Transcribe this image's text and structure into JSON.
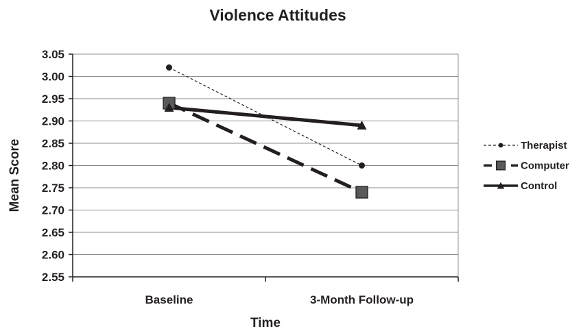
{
  "chart_data": {
    "type": "line",
    "title": "Violence Attitudes",
    "xlabel": "Time",
    "ylabel": "Mean Score",
    "categories": [
      "Baseline",
      "3-Month Follow-up"
    ],
    "ylim": [
      2.55,
      3.05
    ],
    "ytick_step": 0.05,
    "yticks": [
      "2.55",
      "2.60",
      "2.65",
      "2.70",
      "2.75",
      "2.80",
      "2.85",
      "2.90",
      "2.95",
      "3.00",
      "3.05"
    ],
    "grid": true,
    "legend_position": "right",
    "series": [
      {
        "name": "Therapist",
        "values": [
          3.02,
          2.8
        ],
        "line": "dotted",
        "marker": "circle",
        "color": "#231f20"
      },
      {
        "name": "Computer",
        "values": [
          2.94,
          2.74
        ],
        "line": "dashed",
        "marker": "square",
        "color": "#231f20",
        "marker_fill": "#595959"
      },
      {
        "name": "Control",
        "values": [
          2.93,
          2.89
        ],
        "line": "solid",
        "marker": "triangle",
        "color": "#231f20"
      }
    ]
  }
}
